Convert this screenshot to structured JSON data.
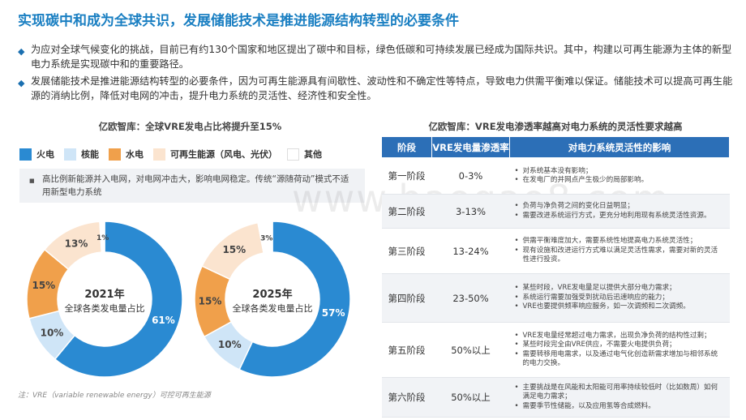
{
  "title": "实现碳中和成为全球共识，发展储能技术是推进能源结构转型的必要条件",
  "bullets": [
    "为应对全球气候变化的挑战，目前已有约130个国家和地区提出了碳中和目标，绿色低碳和可持续发展已经成为国际共识。其中，构建以可再生能源为主体的新型电力系统是实现碳中和的重要路径。",
    "发展储能技术是推进能源结构转型的必要条件，因为可再生能源具有间歇性、波动性和不确定性等特点，导致电力供需平衡难以保证。储能技术可以提高可再生能源的消纳比例，降低对电网的冲击，提升电力系统的灵活性、经济性和安全性。"
  ],
  "left_title": "亿欧智库：全球VRE发电占比将提升至15%",
  "legend": [
    {
      "label": "火电",
      "color": "#2a8ad2"
    },
    {
      "label": "核能",
      "color": "#cfe5f7"
    },
    {
      "label": "水电",
      "color": "#f0a04b"
    },
    {
      "label": "可再生能源（风电、光伏）",
      "color": "#fbe4cf"
    },
    {
      "label": "其他",
      "color": "#ffffff"
    }
  ],
  "note": "高比例新能源并入电网，对电网冲击大，影响电网稳定。传统“源随荷动”模式不适用新型电力系统",
  "chart_data": [
    {
      "type": "pie",
      "title": "2021年",
      "subtitle": "全球各类发电量占比",
      "categories": [
        "火电",
        "核能",
        "水电",
        "可再生能源（风电、光伏）",
        "其他"
      ],
      "values": [
        61,
        10,
        15,
        13,
        1
      ],
      "labels": [
        "61%",
        "10%",
        "15%",
        "13%",
        "1%"
      ]
    },
    {
      "type": "pie",
      "title": "2025年",
      "subtitle": "全球各类发电量占比",
      "categories": [
        "火电",
        "核能",
        "水电",
        "可再生能源（风电、光伏）",
        "其他"
      ],
      "values": [
        57,
        10,
        15,
        15,
        3
      ],
      "labels": [
        "57%",
        "10%",
        "15%",
        "15%",
        "3%"
      ]
    }
  ],
  "footnote": "注：VRE（variable renewable energy）可控可再生能源",
  "right_title": "亿欧智库：VRE发电渗透率越高对电力系统的灵活性要求越高",
  "table": {
    "headers": [
      "阶段",
      "VRE发电量渗透率",
      "对电力系统灵活性的影响"
    ],
    "rows": [
      {
        "stage": "第一阶段",
        "rate": "0-3%",
        "impacts": [
          "对系统基本没有影响；",
          "在发电厂的并网点产生极少的局部影响。"
        ]
      },
      {
        "stage": "第二阶段",
        "rate": "3-13%",
        "impacts": [
          "负荷与净负荷之间的变化日益明显；",
          "需要改进系统运行方式，更充分地利用现有系统灵活性资源。"
        ]
      },
      {
        "stage": "第三阶段",
        "rate": "13-24%",
        "impacts": [
          "供需平衡难度加大，需要系统性地提高电力系统灵活性；",
          "现有设施和改进运行方式难以满足灵活性需求，需要对新的灵活性进行投资。"
        ]
      },
      {
        "stage": "第四阶段",
        "rate": "23-50%",
        "impacts": [
          "某些时段，VRE发电量足以提供大部分电力需求；",
          "系统运行需要加强受到扰动后迅速响应的能力；",
          "VRE也要提供频率响应服务，如一次调频和二次调频。"
        ]
      },
      {
        "stage": "第五阶段",
        "rate": "50%以上",
        "impacts": [
          "VRE发电量经常超过电力需求，出现负净负荷的结构性过剩；",
          "某些时段完全由VRE供应，不需要火电提供负荷；",
          "需要转移用电需求，以及通过电气化创造新需求增加与相邻系统的电力交换。"
        ]
      },
      {
        "stage": "第六阶段",
        "rate": "50%以上",
        "impacts": [
          "主要挑战是在风能和太阳能可用率持续较低时（比如数周）如何满足电力需求；",
          "需要季节性储能，以及应用氢等合成燃料。"
        ]
      }
    ]
  },
  "watermark": "www.baogao8.com"
}
